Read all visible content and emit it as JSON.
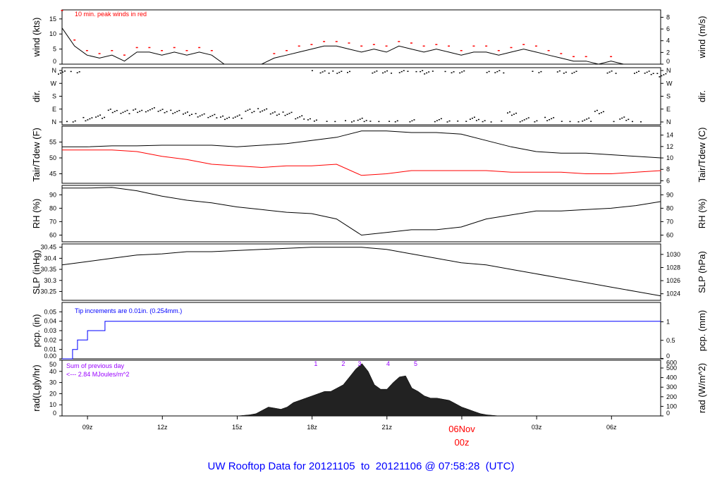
{
  "chart_data": {
    "type": "line",
    "title": "UW Rooftop Data for 20121105  to  20121106 @ 07:58:28  (UTC)",
    "x_unit": "hours since 05Nov 00z",
    "xlim": [
      7.98,
      31.97
    ],
    "x_ticks": [
      {
        "v": 9,
        "label": "09z"
      },
      {
        "v": 12,
        "label": "12z"
      },
      {
        "v": 15,
        "label": "15z"
      },
      {
        "v": 18,
        "label": "18z"
      },
      {
        "v": 21,
        "label": "21z"
      },
      {
        "v": 24,
        "label": "00z"
      },
      {
        "v": 27,
        "label": "03z"
      },
      {
        "v": 30,
        "label": "06z"
      }
    ],
    "date_marker": {
      "v": 24,
      "date": "06Nov",
      "hour": "00z"
    },
    "panels": [
      {
        "id": "wind",
        "ylabel": "wind (kts)",
        "ylabel_right": "wind (m/s)",
        "ylim": [
          0,
          18
        ],
        "ticks": [
          0,
          5,
          10,
          15
        ],
        "right_ylim": [
          0,
          9.26
        ],
        "right_ticks": [
          0,
          2,
          4,
          6,
          8
        ],
        "annotation": "10 min. peak winds in red",
        "x_step": 0.5,
        "values": [
          12,
          6,
          3,
          2,
          3,
          1,
          4,
          4,
          3,
          4,
          3,
          4,
          3,
          0,
          0,
          0,
          0,
          2,
          3,
          4,
          5,
          6,
          6,
          5,
          4,
          5,
          4,
          6,
          5,
          4,
          5,
          4,
          3,
          4,
          4,
          3,
          4,
          5,
          4,
          3,
          2,
          1,
          1,
          0,
          1,
          0,
          0,
          0,
          0
        ],
        "peaks": [
          17.8,
          8,
          4.5,
          3.5,
          4.5,
          3,
          5.5,
          5.5,
          4.5,
          5.5,
          4.5,
          5.5,
          4.5,
          0,
          0,
          0,
          0,
          3.5,
          4.5,
          6,
          6.5,
          7.5,
          7.5,
          7,
          6,
          6.5,
          6,
          7.5,
          7,
          6,
          6.5,
          6,
          4.5,
          6,
          6,
          4.5,
          5.5,
          6.5,
          6,
          4.5,
          3.5,
          2.5,
          2.5,
          0,
          2.5,
          0,
          0,
          0,
          0
        ]
      },
      {
        "id": "dir",
        "ylabel": "dir.",
        "ylabel_right": "dir.",
        "ylim": [
          0,
          360
        ],
        "tick_labels": [
          "N",
          "E",
          "S",
          "W",
          "N"
        ],
        "x_step": 0.5,
        "values": [
          350,
          355,
          20,
          40,
          75,
          70,
          80,
          85,
          75,
          70,
          60,
          50,
          40,
          30,
          40,
          75,
          80,
          60,
          60,
          30,
          10,
          355,
          355,
          355,
          15,
          355,
          350,
          355,
          5,
          350,
          10,
          355,
          355,
          25,
          355,
          355,
          60,
          15,
          355,
          20,
          355,
          355,
          15,
          70,
          355,
          20,
          350,
          345,
          330
        ]
      },
      {
        "id": "tair",
        "ylabel": "Tair/Tdew (F)",
        "ylabel_right": "Tair/Tdew (C)",
        "ylim": [
          42,
          60
        ],
        "ticks": [
          45,
          50,
          55
        ],
        "right_ylim": [
          5.56,
          15.56
        ],
        "right_ticks": [
          6,
          8,
          10,
          12,
          14
        ],
        "x_step": 1,
        "series": [
          {
            "name": "Tair",
            "color": "#000000",
            "values": [
              53.5,
              53.5,
              53.8,
              53.8,
              54,
              54,
              54,
              53.5,
              54,
              54.5,
              55.5,
              56.5,
              58.5,
              58.5,
              58,
              58,
              57.5,
              55.5,
              53.5,
              52,
              51.5,
              51.5,
              51,
              50.5,
              50
            ]
          },
          {
            "name": "Tdew",
            "color": "#ff0000",
            "values": [
              52.5,
              52.5,
              52.5,
              52,
              50.5,
              49.5,
              48,
              47.5,
              47,
              47.5,
              47.5,
              48,
              44.5,
              45,
              46,
              46,
              46,
              46,
              45.5,
              45.5,
              45.5,
              45,
              45,
              45.5,
              46
            ]
          }
        ]
      },
      {
        "id": "rh",
        "ylabel": "RH (%)",
        "ylabel_right": "RH (%)",
        "ylim": [
          55,
          97
        ],
        "ticks": [
          60,
          70,
          80,
          90
        ],
        "right_ticks": [
          60,
          70,
          80,
          90
        ],
        "x_step": 1,
        "values": [
          95,
          95,
          95.5,
          93,
          89,
          86,
          84,
          81,
          79,
          77,
          76,
          72,
          60,
          62,
          64,
          64,
          66,
          72,
          75,
          78,
          78,
          79,
          80,
          82,
          85
        ]
      },
      {
        "id": "slp",
        "ylabel": "SLP (inHg)",
        "ylabel_right": "SLP (hPa)",
        "ylim": [
          30.21,
          30.465
        ],
        "ticks": [
          30.25,
          30.3,
          30.35,
          30.4,
          30.45
        ],
        "right_ylim": [
          1023.0,
          1031.6
        ],
        "right_ticks": [
          1024,
          1026,
          1028,
          1030
        ],
        "x_step": 1,
        "values": [
          30.37,
          30.385,
          30.4,
          30.415,
          30.42,
          30.43,
          30.43,
          30.435,
          30.44,
          30.445,
          30.45,
          30.45,
          30.45,
          30.44,
          30.42,
          30.4,
          30.38,
          30.37,
          30.35,
          30.33,
          30.31,
          30.29,
          30.27,
          30.25,
          30.23
        ]
      },
      {
        "id": "pcp",
        "ylabel": "pcp. (in)",
        "ylabel_right": "pcp. (mm)",
        "ylim": [
          0,
          0.06
        ],
        "ticks": [
          "0.00",
          "0.01",
          "0.02",
          "0.03",
          "0.04",
          "0.05"
        ],
        "right_ylim": [
          0,
          1.524
        ],
        "right_ticks": [
          0,
          0.5,
          1
        ],
        "annotation": "Tip increments are 0.01in. (0.254mm.)",
        "steps": [
          [
            7.98,
            0
          ],
          [
            8.4,
            0.01
          ],
          [
            8.6,
            0.02
          ],
          [
            9.0,
            0.03
          ],
          [
            9.7,
            0.04
          ],
          [
            31.97,
            0.04
          ]
        ]
      },
      {
        "id": "rad",
        "ylabel": "rad(Lgly/hr)",
        "ylabel_right": "rad (W/m^2)",
        "ylim": [
          0,
          50
        ],
        "ticks": [
          0,
          10,
          20,
          30,
          40,
          50
        ],
        "right_ylim": [
          0,
          581
        ],
        "right_ticks": [
          0,
          100,
          200,
          300,
          400,
          500,
          600
        ],
        "annotation": [
          "Sum of previous day",
          "<--- 2.84 MJoules/m^2"
        ],
        "markers": [
          {
            "v": 18.15,
            "label": "1"
          },
          {
            "v": 19.25,
            "label": "2"
          },
          {
            "v": 19.9,
            "label": "3"
          },
          {
            "v": 21.05,
            "label": "4"
          },
          {
            "v": 22.15,
            "label": "5"
          }
        ],
        "x_step": 0.25,
        "x_start": 15,
        "values": [
          0,
          0.5,
          1,
          2,
          5,
          8,
          7,
          6,
          8,
          12,
          14,
          16,
          18,
          20,
          22,
          22,
          25,
          28,
          35,
          42,
          47,
          40,
          28,
          24,
          24,
          30,
          35,
          36,
          25,
          22,
          18,
          16,
          16,
          15,
          14,
          11,
          8,
          6,
          4,
          2,
          1,
          0.5,
          0
        ]
      }
    ]
  }
}
